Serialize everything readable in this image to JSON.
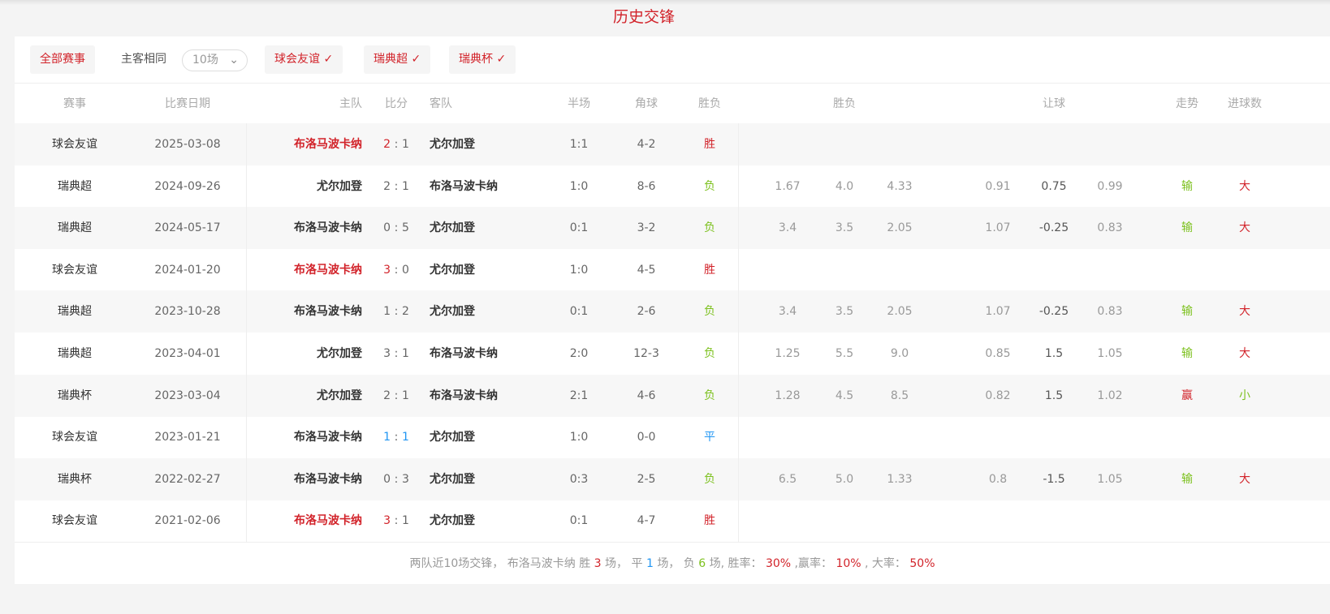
{
  "title": "历史交锋",
  "filters": {
    "all": "全部赛事",
    "same_home_away": "主客相同",
    "count_select": "10场",
    "chips": [
      "球会友谊",
      "瑞典超",
      "瑞典杯"
    ]
  },
  "headers": [
    "赛事",
    "比赛日期",
    "主队",
    "比分",
    "客队",
    "半场",
    "角球",
    "胜负",
    "胜负",
    "让球",
    "走势",
    "进球数"
  ],
  "rows": [
    {
      "league": "球会友谊",
      "date": "2025-03-08",
      "home": "布洛马波卡纳",
      "hs": "2",
      "as": "1",
      "away": "尤尔加登",
      "half": "1:1",
      "corner": "4-2",
      "result": "胜",
      "odds": [
        "",
        "",
        ""
      ],
      "hc": [
        "",
        "",
        ""
      ],
      "trend": "",
      "goals": "",
      "hl": "red"
    },
    {
      "league": "瑞典超",
      "date": "2024-09-26",
      "home": "尤尔加登",
      "hs": "2",
      "as": "1",
      "away": "布洛马波卡纳",
      "half": "1:0",
      "corner": "8-6",
      "result": "负",
      "odds": [
        "1.67",
        "4.0",
        "4.33"
      ],
      "hc": [
        "0.91",
        "0.75",
        "0.99"
      ],
      "trend": "输",
      "goals": "大",
      "hl": ""
    },
    {
      "league": "瑞典超",
      "date": "2024-05-17",
      "home": "布洛马波卡纳",
      "hs": "0",
      "as": "5",
      "away": "尤尔加登",
      "half": "0:1",
      "corner": "3-2",
      "result": "负",
      "odds": [
        "3.4",
        "3.5",
        "2.05"
      ],
      "hc": [
        "1.07",
        "-0.25",
        "0.83"
      ],
      "trend": "输",
      "goals": "大",
      "hl": ""
    },
    {
      "league": "球会友谊",
      "date": "2024-01-20",
      "home": "布洛马波卡纳",
      "hs": "3",
      "as": "0",
      "away": "尤尔加登",
      "half": "1:0",
      "corner": "4-5",
      "result": "胜",
      "odds": [
        "",
        "",
        ""
      ],
      "hc": [
        "",
        "",
        ""
      ],
      "trend": "",
      "goals": "",
      "hl": "red"
    },
    {
      "league": "瑞典超",
      "date": "2023-10-28",
      "home": "布洛马波卡纳",
      "hs": "1",
      "as": "2",
      "away": "尤尔加登",
      "half": "0:1",
      "corner": "2-6",
      "result": "负",
      "odds": [
        "3.4",
        "3.5",
        "2.05"
      ],
      "hc": [
        "1.07",
        "-0.25",
        "0.83"
      ],
      "trend": "输",
      "goals": "大",
      "hl": ""
    },
    {
      "league": "瑞典超",
      "date": "2023-04-01",
      "home": "尤尔加登",
      "hs": "3",
      "as": "1",
      "away": "布洛马波卡纳",
      "half": "2:0",
      "corner": "12-3",
      "result": "负",
      "odds": [
        "1.25",
        "5.5",
        "9.0"
      ],
      "hc": [
        "0.85",
        "1.5",
        "1.05"
      ],
      "trend": "输",
      "goals": "大",
      "hl": ""
    },
    {
      "league": "瑞典杯",
      "date": "2023-03-04",
      "home": "尤尔加登",
      "hs": "2",
      "as": "1",
      "away": "布洛马波卡纳",
      "half": "2:1",
      "corner": "4-6",
      "result": "负",
      "odds": [
        "1.28",
        "4.5",
        "8.5"
      ],
      "hc": [
        "0.82",
        "1.5",
        "1.02"
      ],
      "trend": "赢",
      "goals": "小",
      "hl": ""
    },
    {
      "league": "球会友谊",
      "date": "2023-01-21",
      "home": "布洛马波卡纳",
      "hs": "1",
      "as": "1",
      "away": "尤尔加登",
      "half": "1:0",
      "corner": "0-0",
      "result": "平",
      "odds": [
        "",
        "",
        ""
      ],
      "hc": [
        "",
        "",
        ""
      ],
      "trend": "",
      "goals": "",
      "hl": "blue"
    },
    {
      "league": "瑞典杯",
      "date": "2022-02-27",
      "home": "布洛马波卡纳",
      "hs": "0",
      "as": "3",
      "away": "尤尔加登",
      "half": "0:3",
      "corner": "2-5",
      "result": "负",
      "odds": [
        "6.5",
        "5.0",
        "1.33"
      ],
      "hc": [
        "0.8",
        "-1.5",
        "1.05"
      ],
      "trend": "输",
      "goals": "大",
      "hl": ""
    },
    {
      "league": "球会友谊",
      "date": "2021-02-06",
      "home": "布洛马波卡纳",
      "hs": "3",
      "as": "1",
      "away": "尤尔加登",
      "half": "0:1",
      "corner": "4-7",
      "result": "胜",
      "odds": [
        "",
        "",
        ""
      ],
      "hc": [
        "",
        "",
        ""
      ],
      "trend": "",
      "goals": "",
      "hl": "red"
    }
  ],
  "summary": {
    "prefix": "两队近10场交锋，  布洛马波卡纳 胜",
    "wins": "3",
    "t1": "场，  平",
    "draws": "1",
    "t2": "场，  负",
    "losses": "6",
    "t3": "场, 胜率：",
    "win_rate": "30%",
    "t4": ",赢率：",
    "cover_rate": "10%",
    "t5": ", 大率：",
    "over_rate": "50%"
  },
  "colors": {
    "accent": "#d2232a",
    "win": "#d2232a",
    "draw": "#2196f3",
    "loss": "#7dc11f"
  }
}
